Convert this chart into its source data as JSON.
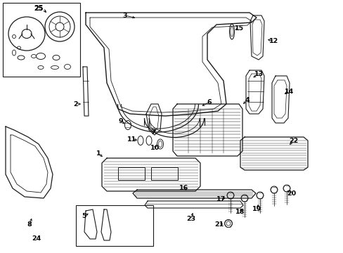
{
  "bg_color": "#ffffff",
  "line_color": "#1a1a1a",
  "label_positions": {
    "1": [
      148,
      218,
      165,
      218
    ],
    "2": [
      108,
      168,
      120,
      178
    ],
    "3": [
      178,
      22,
      195,
      30
    ],
    "4": [
      352,
      148,
      340,
      158
    ],
    "5": [
      138,
      298,
      148,
      295
    ],
    "6": [
      295,
      148,
      280,
      152
    ],
    "7": [
      220,
      185,
      228,
      178
    ],
    "8": [
      42,
      318,
      48,
      308
    ],
    "9": [
      173,
      178,
      180,
      182
    ],
    "10": [
      215,
      205,
      210,
      205
    ],
    "11": [
      192,
      198,
      202,
      200
    ],
    "12": [
      390,
      60,
      378,
      62
    ],
    "13": [
      368,
      108,
      360,
      118
    ],
    "14": [
      408,
      132,
      398,
      138
    ],
    "15": [
      338,
      45,
      335,
      52
    ],
    "16": [
      268,
      272,
      270,
      268
    ],
    "17": [
      318,
      285,
      325,
      285
    ],
    "18": [
      345,
      300,
      348,
      295
    ],
    "19": [
      368,
      295,
      368,
      290
    ],
    "20": [
      402,
      278,
      396,
      282
    ],
    "21": [
      318,
      318,
      326,
      318
    ],
    "22": [
      415,
      202,
      408,
      208
    ],
    "23": [
      278,
      310,
      278,
      305
    ],
    "24": [
      55,
      338,
      55,
      338
    ],
    "25": [
      60,
      18,
      70,
      22
    ]
  }
}
